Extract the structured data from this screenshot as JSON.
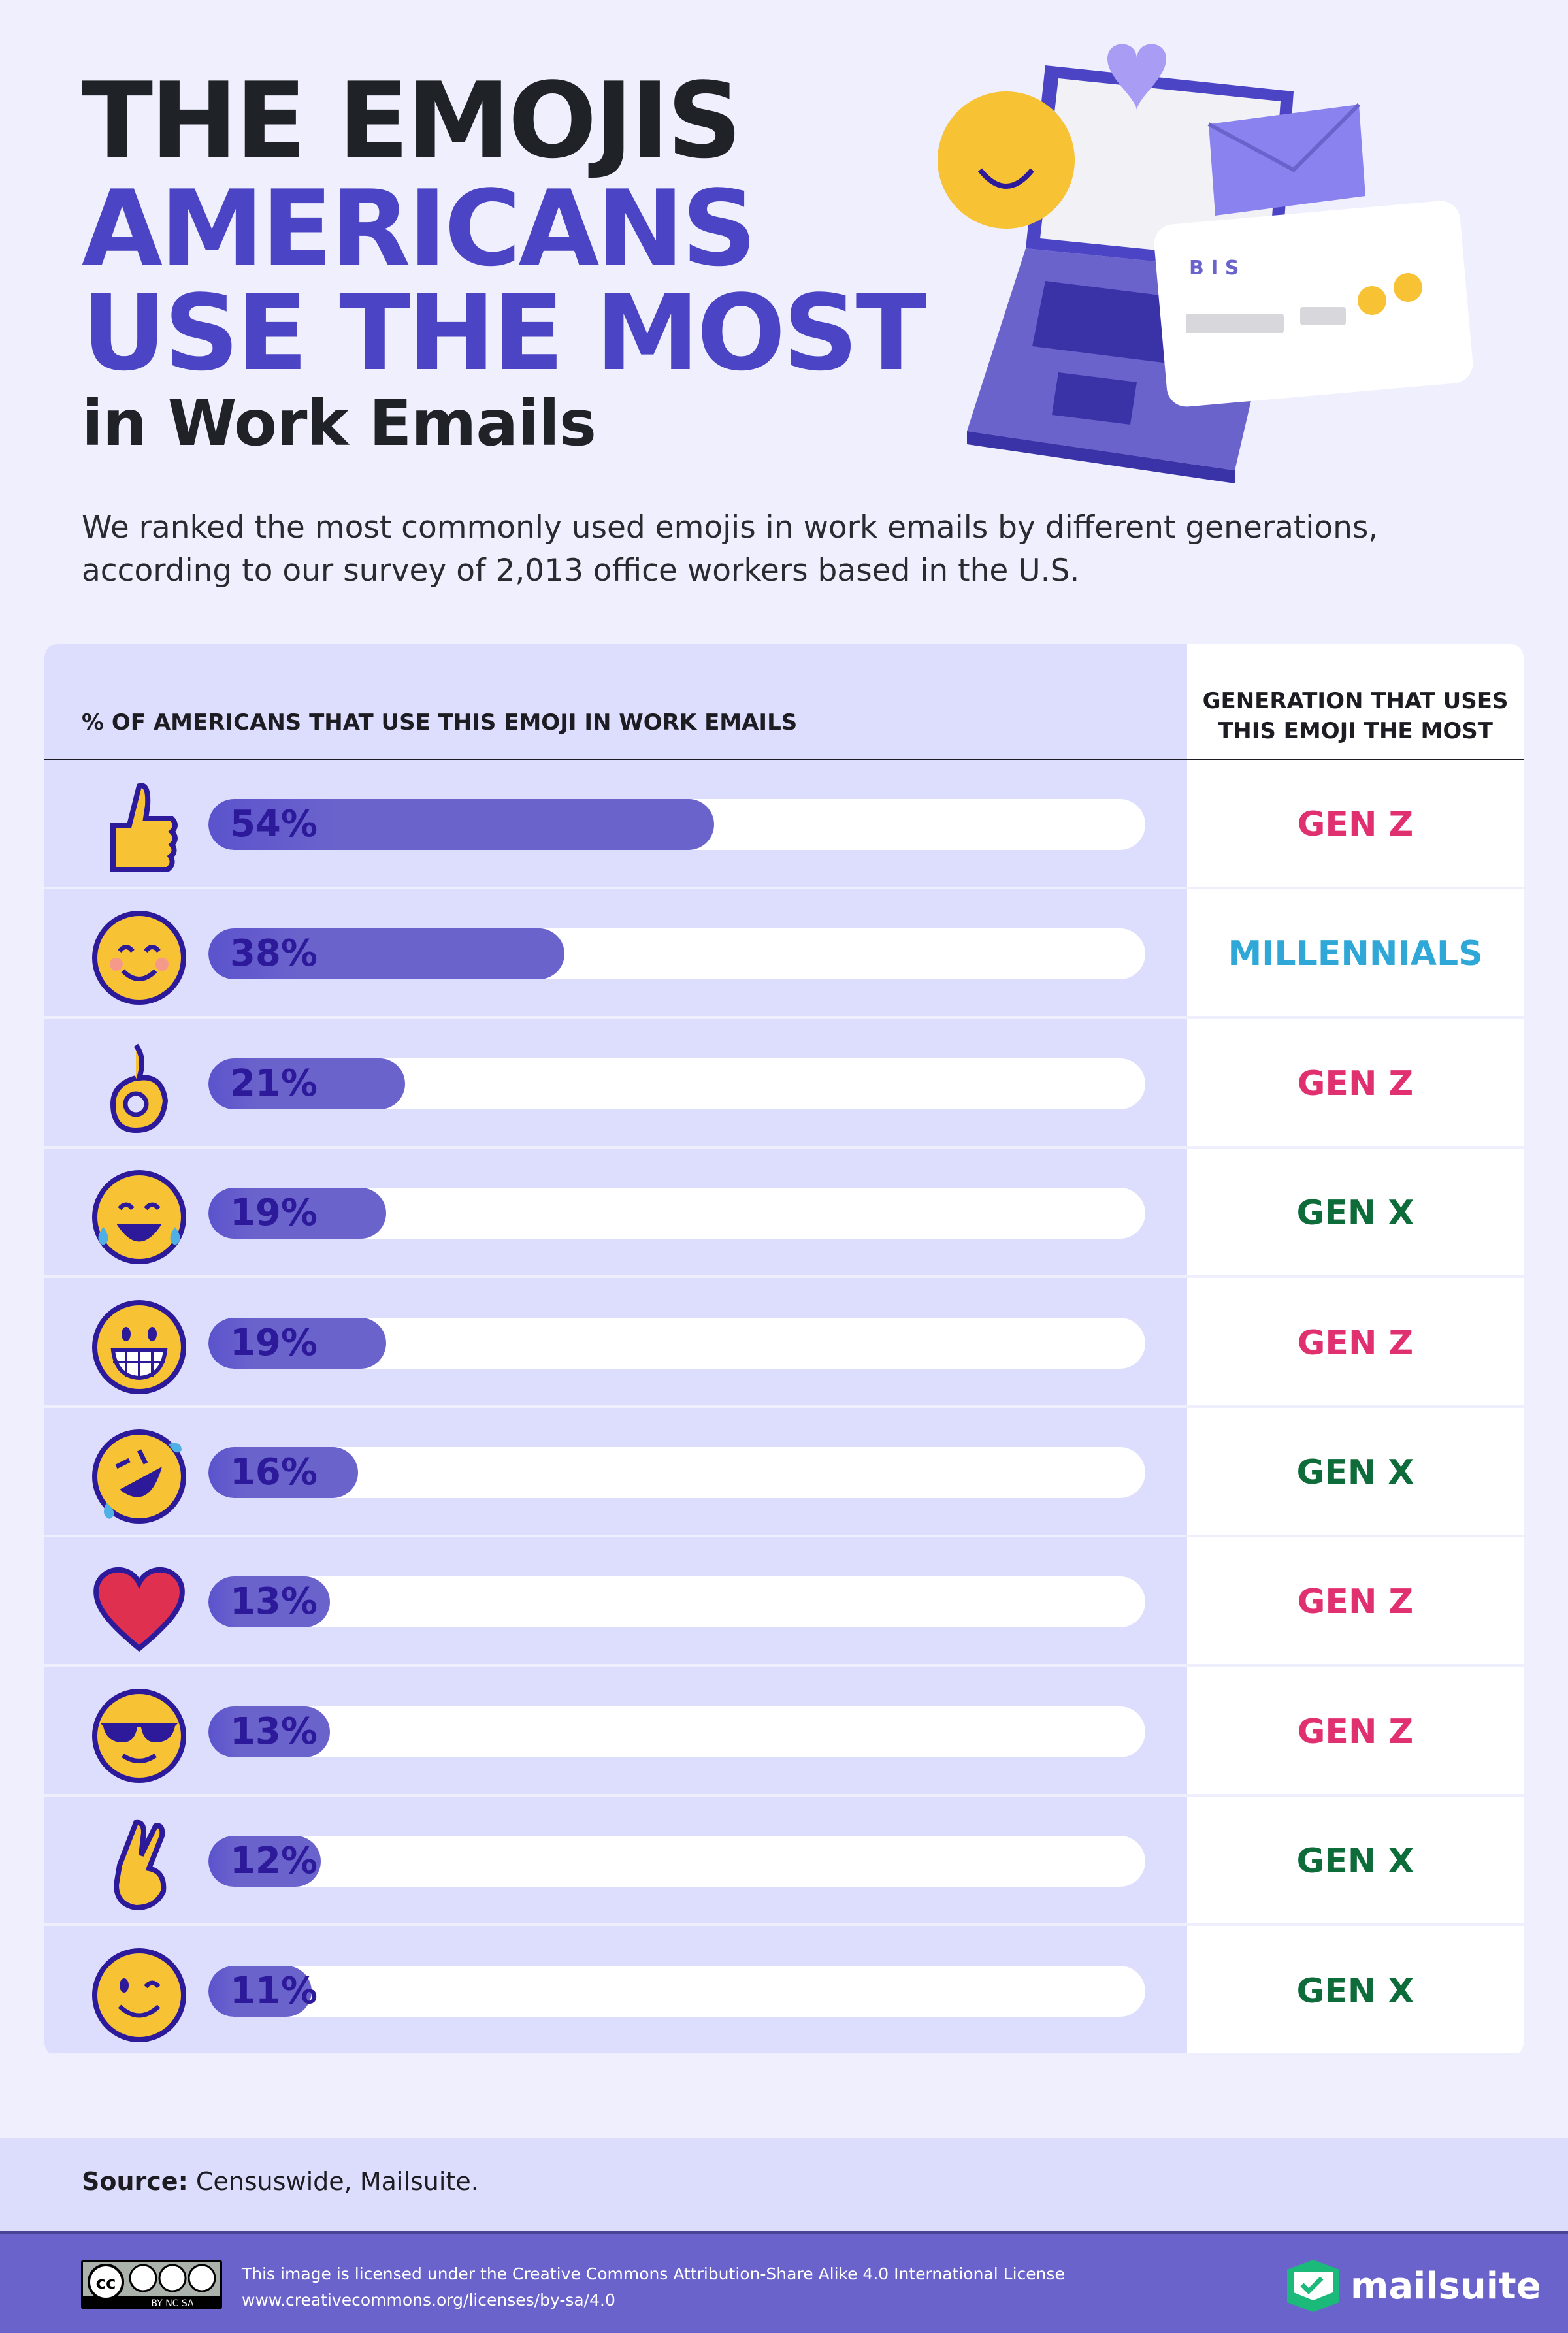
{
  "title": {
    "line1": "THE EMOJIS",
    "line2": "AMERICANS",
    "line3": "USE THE MOST",
    "line4": "in Work Emails"
  },
  "subtitle": "We ranked the most commonly used emojis in work emails by different generations, according to our survey of 2,013 office workers based in the U.S.",
  "illustration": {
    "toolbar_text": "B I S"
  },
  "chart_data": {
    "type": "bar",
    "orientation": "horizontal",
    "xlabel": "% OF AMERICANS THAT USE THIS EMOJI IN WORK EMAILS",
    "column2_header": "GENERATION THAT USES THIS EMOJI THE MOST",
    "xlim": [
      0,
      100
    ],
    "categories": [
      "thumbs-up",
      "smiling-face-with-smiling-eyes",
      "ok-hand",
      "face-with-tears-of-joy",
      "grinning-face",
      "rolling-on-the-floor-laughing",
      "red-heart",
      "smiling-face-with-sunglasses",
      "crossed-fingers",
      "winking-face"
    ],
    "values": [
      54,
      38,
      21,
      19,
      19,
      16,
      13,
      13,
      12,
      11
    ],
    "labels": [
      "54%",
      "38%",
      "21%",
      "19%",
      "19%",
      "16%",
      "13%",
      "13%",
      "12%",
      "11%"
    ],
    "generations": [
      "GEN Z",
      "MILLENNIALS",
      "GEN Z",
      "GEN X",
      "GEN Z",
      "GEN X",
      "GEN Z",
      "GEN Z",
      "GEN X",
      "GEN X"
    ],
    "bar_color": "#6b63cc"
  },
  "generation_colors": {
    "GEN Z": "#e0306f",
    "MILLENNIALS": "#2fa8d8",
    "GEN X": "#0e6b3a"
  },
  "source": {
    "label": "Source:",
    "text": " Censuswide, Mailsuite."
  },
  "footer": {
    "license_line1": "This image is licensed under the Creative Commons Attribution-Share Alike 4.0 International License",
    "license_line2": "www.creativecommons.org/licenses/by-sa/4.0",
    "cc_badge": "BY NC SA",
    "brand": "mailsuite"
  }
}
